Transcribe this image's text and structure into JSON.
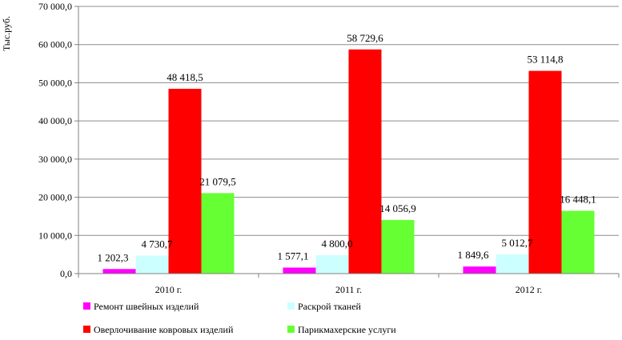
{
  "chart_data": {
    "type": "bar",
    "ylabel": "Тыс.руб.",
    "ylim": [
      0,
      70000
    ],
    "y_ticks": [
      "0,0",
      "10 000,0",
      "20 000,0",
      "30 000,0",
      "40 000,0",
      "50 000,0",
      "60 000,0",
      "70 000,0"
    ],
    "categories": [
      "2010 г.",
      "2011 г.",
      "2012 г."
    ],
    "grid": true,
    "legend_position": "bottom",
    "series": [
      {
        "name": "Ремонт швейных изделий",
        "color": "#ff00ff",
        "values": [
          1202.3,
          1577.1,
          1849.6
        ],
        "labels": [
          "1 202,3",
          "1 577,1",
          "1 849,6"
        ]
      },
      {
        "name": "Раскрой тканей",
        "color": "#ccffff",
        "values": [
          4730.7,
          4800.0,
          5012.7
        ],
        "labels": [
          "4 730,7",
          "4 800,0",
          "5 012,7"
        ]
      },
      {
        "name": "Оверлочивание ковровых изделий",
        "color": "#ff0000",
        "values": [
          48418.5,
          58729.6,
          53114.8
        ],
        "labels": [
          "48 418,5",
          "58 729,6",
          "53 114,8"
        ]
      },
      {
        "name": "Парикмахерские услуги",
        "color": "#66ff33",
        "values": [
          21079.5,
          14056.9,
          16448.1
        ],
        "labels": [
          "21 079,5",
          "14 056,9",
          "16 448,1"
        ]
      }
    ]
  }
}
